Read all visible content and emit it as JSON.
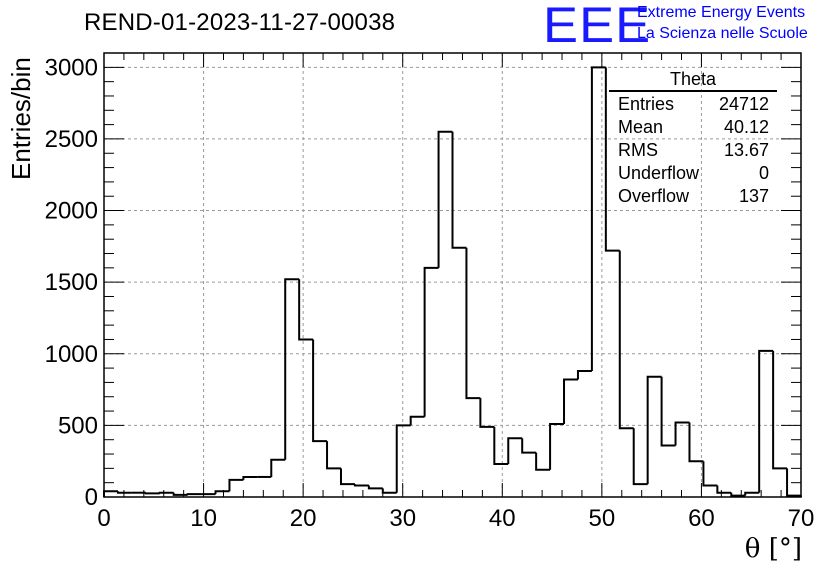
{
  "header": {
    "title": "REND-01-2023-11-27-00038",
    "logo_text": "EEE",
    "logo_line1": "Extreme Energy Events",
    "logo_line2": "La Scienza nelle Scuole",
    "logo_color": "#0000ff"
  },
  "stats_box": {
    "name": "Theta",
    "rows": [
      {
        "label": "Entries",
        "value": "24712"
      },
      {
        "label": "Mean",
        "value": "40.12"
      },
      {
        "label": "RMS",
        "value": "13.67"
      },
      {
        "label": "Underflow",
        "value": "0"
      },
      {
        "label": "Overflow",
        "value": "137"
      }
    ]
  },
  "chart_data": {
    "type": "bar",
    "style": "step-histogram",
    "title": "REND-01-2023-11-27-00038",
    "xlabel": "θ [°]",
    "ylabel": "Entries/bin",
    "xlim": [
      0,
      70
    ],
    "ylim": [
      0,
      3100
    ],
    "x_ticks": [
      0,
      10,
      20,
      30,
      40,
      50,
      60,
      70
    ],
    "y_ticks": [
      0,
      500,
      1000,
      1500,
      2000,
      2500,
      3000
    ],
    "grid": true,
    "bin_width": 1.4,
    "values": [
      40,
      30,
      30,
      25,
      30,
      15,
      20,
      20,
      40,
      120,
      140,
      140,
      260,
      1520,
      1100,
      390,
      200,
      90,
      80,
      60,
      30,
      500,
      560,
      1600,
      2550,
      1740,
      690,
      490,
      230,
      410,
      310,
      190,
      510,
      820,
      880,
      3000,
      1720,
      480,
      90,
      840,
      360,
      520,
      250,
      80,
      30,
      10,
      30,
      1020,
      200,
      10
    ]
  }
}
